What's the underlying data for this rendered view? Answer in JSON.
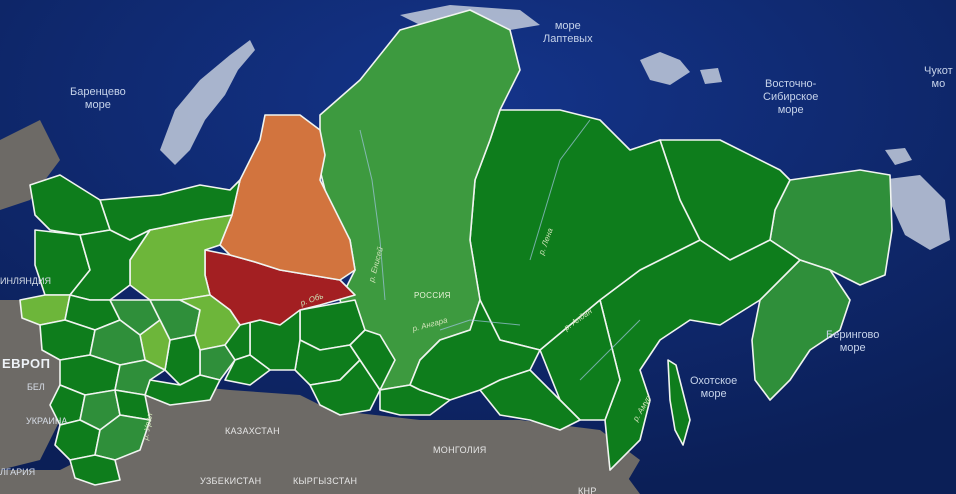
{
  "map": {
    "colors": {
      "ocean": "#0f2a66",
      "land": "#6d6a66",
      "ice": "#b9c3d6",
      "region_dark_green": "#0e7d1c",
      "region_green": "#2f8f3a",
      "region_light_green": "#6db63a",
      "region_orange": "#d2743e",
      "region_red": "#a31f22",
      "border": "#f0f4f0"
    },
    "labels": {
      "laptev_sea": "море\nЛаптевых",
      "barents_sea": "Баренцево\nморе",
      "east_siberian_sea": "Восточно-\nСибирское\nморе",
      "chukchi_sea": "Чукот\nмо",
      "bering_sea": "Берингово\nморе",
      "okhotsk_sea": "Охотское\nморе",
      "russia": "РОССИЯ",
      "europe": "ЕВРОП",
      "finland": "ИНЛЯНДИЯ",
      "belarus": "БЕЛ",
      "ukraine": "УКРАИНА",
      "bulgaria": "ЛГАРИЯ",
      "kazakhstan": "КАЗАХСТАН",
      "mongolia": "МОНГОЛИЯ",
      "uzbekistan": "УЗБЕКИСТАН",
      "kyrgyzstan": "КЫРГЫЗСТАН",
      "china": "КНР",
      "river_yenisei": "р. Енисей",
      "river_lena": "р. Лена",
      "river_aldan": "р. Алдан",
      "river_angara": "р. Ангара",
      "river_amur": "р. Амур",
      "river_ob": "р. Обь",
      "river_ural": "р. Урал"
    }
  }
}
